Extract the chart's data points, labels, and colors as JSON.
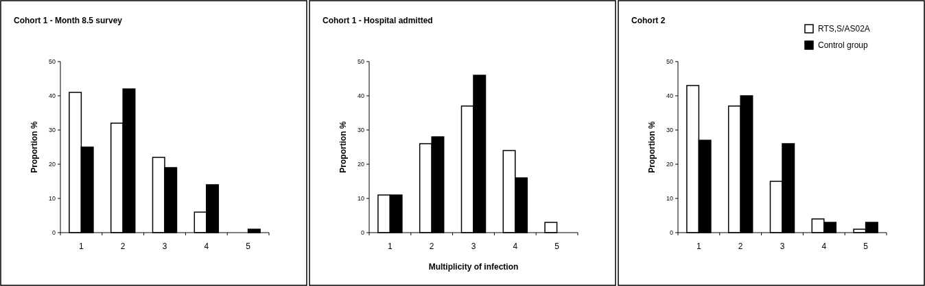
{
  "chart_data": [
    {
      "type": "bar",
      "title": "Cohort 1 - Month 8.5 survey",
      "ylabel": "Proportion %",
      "categories": [
        "1",
        "2",
        "3",
        "4",
        "5"
      ],
      "series": [
        {
          "color": "#ffffff",
          "values": [
            41,
            32,
            22,
            6,
            0
          ]
        },
        {
          "color": "#000000",
          "values": [
            25,
            42,
            19,
            14,
            1
          ]
        }
      ],
      "ylim": [
        0,
        50
      ],
      "yticks": [
        0,
        10,
        20,
        30,
        40,
        50
      ],
      "legend": false
    },
    {
      "type": "bar",
      "title": "Cohort 1 - Hospital admitted",
      "ylabel": "Proportion %",
      "xlabel": "Multiplicity of infection",
      "categories": [
        "1",
        "2",
        "3",
        "4",
        "5"
      ],
      "series": [
        {
          "color": "#ffffff",
          "values": [
            11,
            26,
            37,
            24,
            3
          ]
        },
        {
          "color": "#000000",
          "values": [
            11,
            28,
            46,
            16,
            0
          ]
        }
      ],
      "ylim": [
        0,
        50
      ],
      "yticks": [
        0,
        10,
        20,
        30,
        40,
        50
      ],
      "legend": false
    },
    {
      "type": "bar",
      "title": "Cohort 2",
      "ylabel": "Proportion %",
      "categories": [
        "1",
        "2",
        "3",
        "4",
        "5"
      ],
      "series": [
        {
          "name": "RTS,S/AS02A",
          "color": "#ffffff",
          "values": [
            43,
            37,
            15,
            4,
            1
          ]
        },
        {
          "name": "Control group",
          "color": "#000000",
          "values": [
            27,
            40,
            26,
            3,
            3
          ]
        }
      ],
      "ylim": [
        0,
        50
      ],
      "yticks": [
        0,
        10,
        20,
        30,
        40,
        50
      ],
      "legend": "top right"
    }
  ]
}
